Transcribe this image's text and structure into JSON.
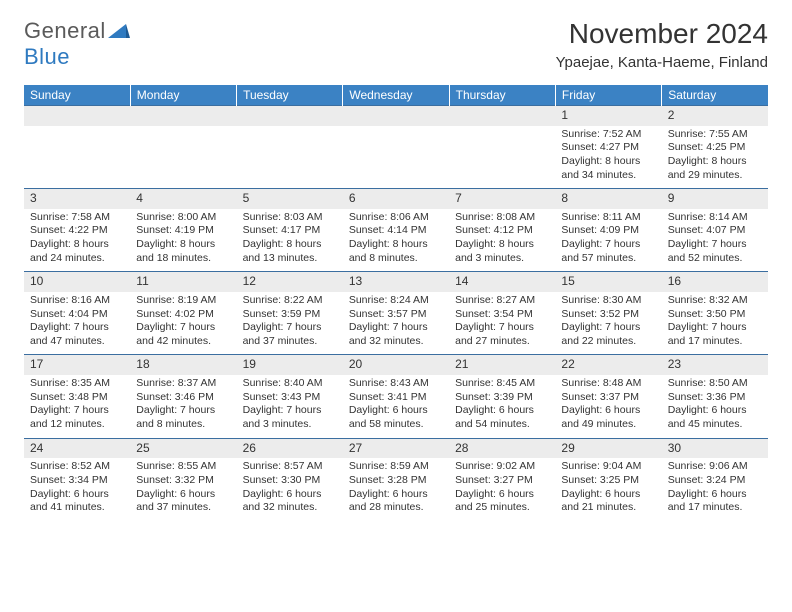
{
  "logo": {
    "text1": "General",
    "text2": "Blue"
  },
  "title": "November 2024",
  "location": "Ypaejae, Kanta-Haeme, Finland",
  "colors": {
    "header_bg": "#3b82c4",
    "header_text": "#ffffff",
    "daynum_bg": "#ececec",
    "border": "#3b6ea0",
    "logo_gray": "#5a5a5a",
    "logo_blue": "#2f7ac0"
  },
  "weekdays": [
    "Sunday",
    "Monday",
    "Tuesday",
    "Wednesday",
    "Thursday",
    "Friday",
    "Saturday"
  ],
  "weeks": [
    [
      null,
      null,
      null,
      null,
      null,
      {
        "n": "1",
        "sr": "7:52 AM",
        "ss": "4:27 PM",
        "dl": "8 hours and 34 minutes."
      },
      {
        "n": "2",
        "sr": "7:55 AM",
        "ss": "4:25 PM",
        "dl": "8 hours and 29 minutes."
      }
    ],
    [
      {
        "n": "3",
        "sr": "7:58 AM",
        "ss": "4:22 PM",
        "dl": "8 hours and 24 minutes."
      },
      {
        "n": "4",
        "sr": "8:00 AM",
        "ss": "4:19 PM",
        "dl": "8 hours and 18 minutes."
      },
      {
        "n": "5",
        "sr": "8:03 AM",
        "ss": "4:17 PM",
        "dl": "8 hours and 13 minutes."
      },
      {
        "n": "6",
        "sr": "8:06 AM",
        "ss": "4:14 PM",
        "dl": "8 hours and 8 minutes."
      },
      {
        "n": "7",
        "sr": "8:08 AM",
        "ss": "4:12 PM",
        "dl": "8 hours and 3 minutes."
      },
      {
        "n": "8",
        "sr": "8:11 AM",
        "ss": "4:09 PM",
        "dl": "7 hours and 57 minutes."
      },
      {
        "n": "9",
        "sr": "8:14 AM",
        "ss": "4:07 PM",
        "dl": "7 hours and 52 minutes."
      }
    ],
    [
      {
        "n": "10",
        "sr": "8:16 AM",
        "ss": "4:04 PM",
        "dl": "7 hours and 47 minutes."
      },
      {
        "n": "11",
        "sr": "8:19 AM",
        "ss": "4:02 PM",
        "dl": "7 hours and 42 minutes."
      },
      {
        "n": "12",
        "sr": "8:22 AM",
        "ss": "3:59 PM",
        "dl": "7 hours and 37 minutes."
      },
      {
        "n": "13",
        "sr": "8:24 AM",
        "ss": "3:57 PM",
        "dl": "7 hours and 32 minutes."
      },
      {
        "n": "14",
        "sr": "8:27 AM",
        "ss": "3:54 PM",
        "dl": "7 hours and 27 minutes."
      },
      {
        "n": "15",
        "sr": "8:30 AM",
        "ss": "3:52 PM",
        "dl": "7 hours and 22 minutes."
      },
      {
        "n": "16",
        "sr": "8:32 AM",
        "ss": "3:50 PM",
        "dl": "7 hours and 17 minutes."
      }
    ],
    [
      {
        "n": "17",
        "sr": "8:35 AM",
        "ss": "3:48 PM",
        "dl": "7 hours and 12 minutes."
      },
      {
        "n": "18",
        "sr": "8:37 AM",
        "ss": "3:46 PM",
        "dl": "7 hours and 8 minutes."
      },
      {
        "n": "19",
        "sr": "8:40 AM",
        "ss": "3:43 PM",
        "dl": "7 hours and 3 minutes."
      },
      {
        "n": "20",
        "sr": "8:43 AM",
        "ss": "3:41 PM",
        "dl": "6 hours and 58 minutes."
      },
      {
        "n": "21",
        "sr": "8:45 AM",
        "ss": "3:39 PM",
        "dl": "6 hours and 54 minutes."
      },
      {
        "n": "22",
        "sr": "8:48 AM",
        "ss": "3:37 PM",
        "dl": "6 hours and 49 minutes."
      },
      {
        "n": "23",
        "sr": "8:50 AM",
        "ss": "3:36 PM",
        "dl": "6 hours and 45 minutes."
      }
    ],
    [
      {
        "n": "24",
        "sr": "8:52 AM",
        "ss": "3:34 PM",
        "dl": "6 hours and 41 minutes."
      },
      {
        "n": "25",
        "sr": "8:55 AM",
        "ss": "3:32 PM",
        "dl": "6 hours and 37 minutes."
      },
      {
        "n": "26",
        "sr": "8:57 AM",
        "ss": "3:30 PM",
        "dl": "6 hours and 32 minutes."
      },
      {
        "n": "27",
        "sr": "8:59 AM",
        "ss": "3:28 PM",
        "dl": "6 hours and 28 minutes."
      },
      {
        "n": "28",
        "sr": "9:02 AM",
        "ss": "3:27 PM",
        "dl": "6 hours and 25 minutes."
      },
      {
        "n": "29",
        "sr": "9:04 AM",
        "ss": "3:25 PM",
        "dl": "6 hours and 21 minutes."
      },
      {
        "n": "30",
        "sr": "9:06 AM",
        "ss": "3:24 PM",
        "dl": "6 hours and 17 minutes."
      }
    ]
  ],
  "labels": {
    "sunrise": "Sunrise:",
    "sunset": "Sunset:",
    "daylight": "Daylight:"
  }
}
